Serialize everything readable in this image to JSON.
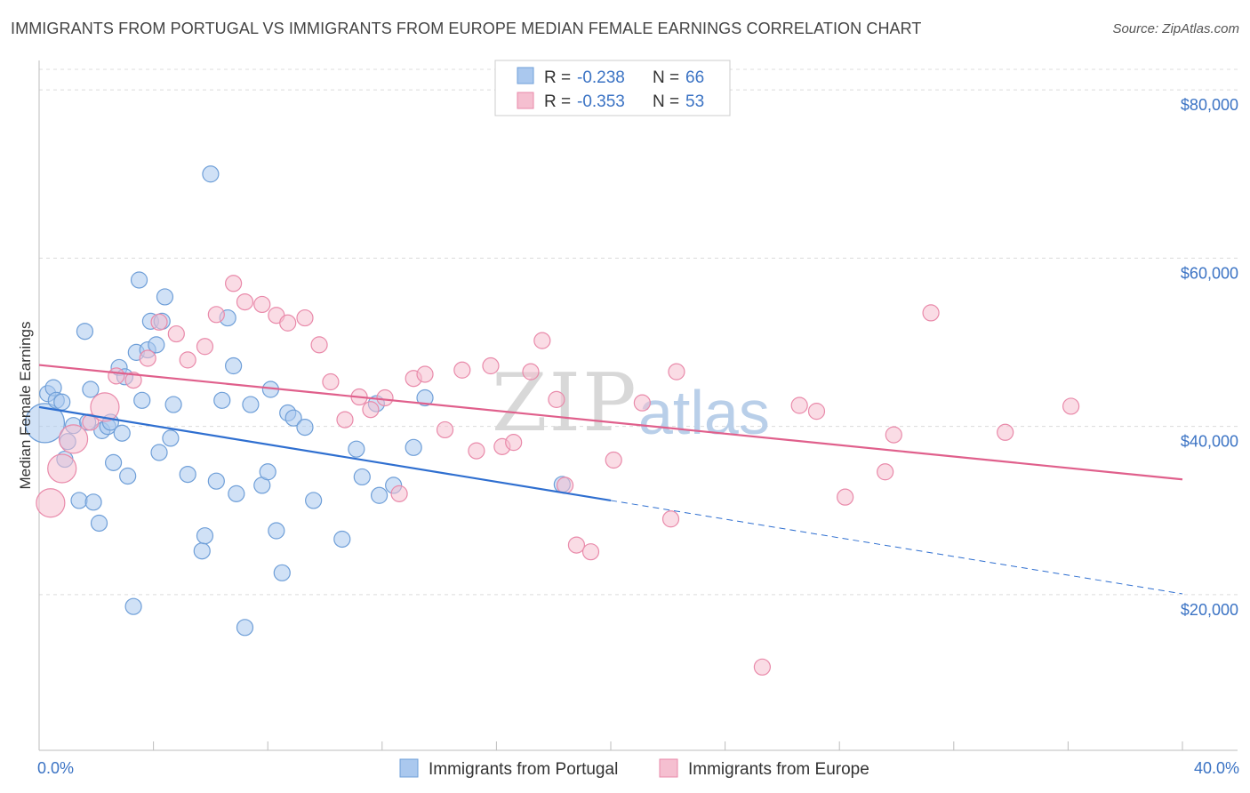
{
  "header": {
    "title": "IMMIGRANTS FROM PORTUGAL VS IMMIGRANTS FROM EUROPE MEDIAN FEMALE EARNINGS CORRELATION CHART",
    "source": "Source: ZipAtlas.com"
  },
  "watermark": {
    "zip": "ZIP",
    "atlas": "atlas"
  },
  "colors": {
    "portugal_fill": "#aac8ee",
    "portugal_stroke": "#6f9fd8",
    "portugal_line": "#2f6fd0",
    "europe_fill": "#f5bfd0",
    "europe_stroke": "#e98aaa",
    "europe_line": "#e0608c",
    "grid": "#dcdcdc",
    "axis_text": "#3b73c4"
  },
  "stats": {
    "portugal": {
      "r_label": "R =",
      "r_value": "-0.238",
      "n_label": "N =",
      "n_value": "66"
    },
    "europe": {
      "r_label": "R =",
      "r_value": "-0.353",
      "n_label": "N =",
      "n_value": "53"
    }
  },
  "chart_data": {
    "type": "scatter",
    "title": "IMMIGRANTS FROM PORTUGAL VS IMMIGRANTS FROM EUROPE MEDIAN FEMALE EARNINGS CORRELATION CHART",
    "xlabel": "",
    "ylabel": "Median Female Earnings",
    "xlim": [
      0,
      40
    ],
    "ylim": [
      1500,
      83500
    ],
    "x_tick_labels": [
      "0.0%",
      "40.0%"
    ],
    "y_ticks": [
      20000,
      40000,
      60000,
      80000
    ],
    "y_tick_labels": [
      "$20,000",
      "$40,000",
      "$60,000",
      "$80,000"
    ],
    "grid": true,
    "legend_position": "bottom",
    "series": [
      {
        "name": "Immigrants from Portugal",
        "r": -0.238,
        "n": 66,
        "trend": {
          "x0": 0,
          "y0": 42300,
          "x1": 20,
          "y1": 31200,
          "dashed_to_x": 40,
          "dashed_to_y": 20100
        },
        "points": [
          [
            0.2,
            40400,
            3
          ],
          [
            0.3,
            43900,
            1
          ],
          [
            0.5,
            44600,
            1
          ],
          [
            0.6,
            43100,
            1
          ],
          [
            0.8,
            42900,
            1
          ],
          [
            0.9,
            36100,
            1
          ],
          [
            1.0,
            38200,
            1
          ],
          [
            1.2,
            40100,
            1
          ],
          [
            1.4,
            31200,
            1
          ],
          [
            1.6,
            51300,
            1
          ],
          [
            1.7,
            40500,
            1
          ],
          [
            1.8,
            44400,
            1
          ],
          [
            1.9,
            31000,
            1
          ],
          [
            2.1,
            28500,
            1
          ],
          [
            2.2,
            39500,
            1
          ],
          [
            2.4,
            40000,
            1
          ],
          [
            2.5,
            40500,
            1
          ],
          [
            2.6,
            35700,
            1
          ],
          [
            2.8,
            47000,
            1
          ],
          [
            2.9,
            39200,
            1
          ],
          [
            3.0,
            45900,
            1
          ],
          [
            3.1,
            34100,
            1
          ],
          [
            3.3,
            18600,
            1
          ],
          [
            3.4,
            48800,
            1
          ],
          [
            3.5,
            57400,
            1
          ],
          [
            3.6,
            43100,
            1
          ],
          [
            3.8,
            49100,
            1
          ],
          [
            3.9,
            52500,
            1
          ],
          [
            4.1,
            49700,
            1
          ],
          [
            4.2,
            36900,
            1
          ],
          [
            4.3,
            52500,
            1
          ],
          [
            4.4,
            55400,
            1
          ],
          [
            4.6,
            38600,
            1
          ],
          [
            4.7,
            42600,
            1
          ],
          [
            5.2,
            34300,
            1
          ],
          [
            5.7,
            25200,
            1
          ],
          [
            5.8,
            27000,
            1
          ],
          [
            6.0,
            70000,
            1
          ],
          [
            6.2,
            33500,
            1
          ],
          [
            6.4,
            43100,
            1
          ],
          [
            6.6,
            52900,
            1
          ],
          [
            6.8,
            47200,
            1
          ],
          [
            6.9,
            32000,
            1
          ],
          [
            7.2,
            16100,
            1
          ],
          [
            7.4,
            42600,
            1
          ],
          [
            7.8,
            33000,
            1
          ],
          [
            8.0,
            34600,
            1
          ],
          [
            8.1,
            44400,
            1
          ],
          [
            8.3,
            27600,
            1
          ],
          [
            8.5,
            22600,
            1
          ],
          [
            8.7,
            41600,
            1
          ],
          [
            8.9,
            41000,
            1
          ],
          [
            9.3,
            39900,
            1
          ],
          [
            9.6,
            31200,
            1
          ],
          [
            10.6,
            26600,
            1
          ],
          [
            11.1,
            37300,
            1
          ],
          [
            11.3,
            34000,
            1
          ],
          [
            11.8,
            42700,
            1
          ],
          [
            11.9,
            31800,
            1
          ],
          [
            12.4,
            33000,
            1
          ],
          [
            13.1,
            37500,
            1
          ],
          [
            13.5,
            43400,
            1
          ],
          [
            18.3,
            33100,
            1
          ]
        ]
      },
      {
        "name": "Immigrants from Europe",
        "r": -0.353,
        "n": 53,
        "trend": {
          "x0": 0,
          "y0": 47300,
          "x1": 40,
          "y1": 33700
        },
        "points": [
          [
            0.4,
            30900,
            2
          ],
          [
            0.8,
            35000,
            2
          ],
          [
            1.2,
            38500,
            2
          ],
          [
            1.8,
            40500,
            1
          ],
          [
            2.3,
            42300,
            2
          ],
          [
            2.7,
            46000,
            1
          ],
          [
            3.3,
            45500,
            1
          ],
          [
            3.8,
            48100,
            1
          ],
          [
            4.2,
            52400,
            1
          ],
          [
            4.8,
            51000,
            1
          ],
          [
            5.2,
            47900,
            1
          ],
          [
            5.8,
            49500,
            1
          ],
          [
            6.2,
            53300,
            1
          ],
          [
            6.8,
            57000,
            1
          ],
          [
            7.2,
            54800,
            1
          ],
          [
            7.8,
            54500,
            1
          ],
          [
            8.3,
            53200,
            1
          ],
          [
            8.7,
            52300,
            1
          ],
          [
            9.3,
            52900,
            1
          ],
          [
            9.8,
            49700,
            1
          ],
          [
            10.2,
            45300,
            1
          ],
          [
            10.7,
            40800,
            1
          ],
          [
            11.2,
            43500,
            1
          ],
          [
            11.6,
            42000,
            1
          ],
          [
            12.1,
            43400,
            1
          ],
          [
            12.6,
            32000,
            1
          ],
          [
            13.1,
            45700,
            1
          ],
          [
            13.5,
            46200,
            1
          ],
          [
            14.2,
            39600,
            1
          ],
          [
            14.8,
            46700,
            1
          ],
          [
            15.3,
            37100,
            1
          ],
          [
            15.8,
            47200,
            1
          ],
          [
            16.2,
            37600,
            1
          ],
          [
            16.6,
            38100,
            1
          ],
          [
            17.2,
            46500,
            1
          ],
          [
            17.6,
            50200,
            1
          ],
          [
            18.1,
            43200,
            1
          ],
          [
            18.4,
            33000,
            1
          ],
          [
            18.8,
            25900,
            1
          ],
          [
            19.3,
            25100,
            1
          ],
          [
            20.1,
            36000,
            1
          ],
          [
            21.1,
            42800,
            1
          ],
          [
            22.1,
            29000,
            1
          ],
          [
            22.3,
            46500,
            1
          ],
          [
            25.3,
            11400,
            1
          ],
          [
            26.6,
            42500,
            1
          ],
          [
            27.2,
            41800,
            1
          ],
          [
            28.2,
            31600,
            1
          ],
          [
            29.6,
            34600,
            1
          ],
          [
            29.9,
            39000,
            1
          ],
          [
            31.2,
            53500,
            1
          ],
          [
            33.8,
            39300,
            1
          ],
          [
            36.1,
            42400,
            1
          ]
        ]
      }
    ]
  }
}
